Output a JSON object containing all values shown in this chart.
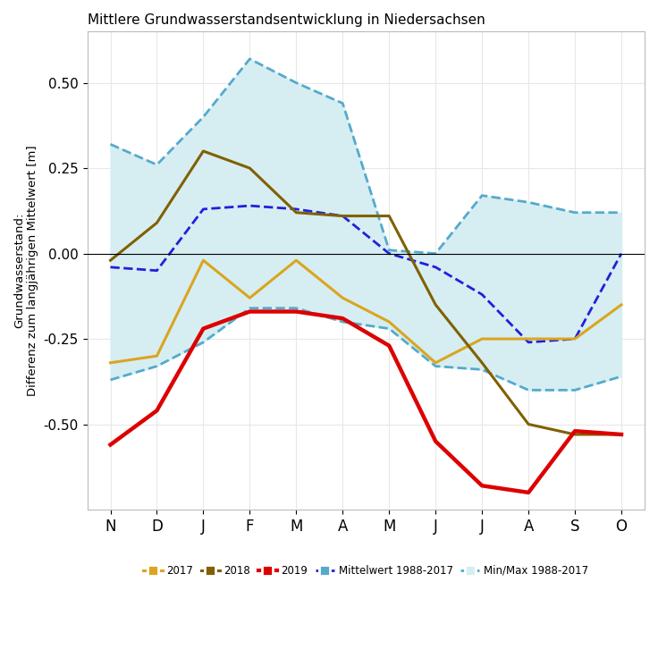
{
  "title": "Mittlere Grundwasserstandsentwicklung in Niedersachsen",
  "ylabel": "Grundwasserstand:\nDifferenz zum langjährigen Mittelwert [m]",
  "x_labels": [
    "N",
    "D",
    "J",
    "F",
    "M",
    "A",
    "M",
    "J",
    "J",
    "A",
    "S",
    "O"
  ],
  "x_indices": [
    0,
    1,
    2,
    3,
    4,
    5,
    6,
    7,
    8,
    9,
    10,
    11
  ],
  "ylim": [
    -0.75,
    0.65
  ],
  "yticks": [
    -0.5,
    -0.25,
    0.0,
    0.25,
    0.5
  ],
  "line_2017": [
    -0.32,
    -0.3,
    -0.02,
    -0.13,
    -0.02,
    -0.13,
    -0.2,
    -0.32,
    -0.25,
    -0.25,
    -0.25,
    -0.15
  ],
  "line_2018": [
    -0.02,
    0.09,
    0.3,
    0.25,
    0.12,
    0.11,
    0.11,
    -0.15,
    -0.32,
    -0.5,
    -0.53,
    -0.53
  ],
  "line_2019": [
    -0.56,
    -0.46,
    -0.22,
    -0.17,
    -0.17,
    -0.19,
    -0.27,
    -0.55,
    -0.68,
    -0.7,
    -0.52,
    -0.53
  ],
  "mittelwert": [
    -0.04,
    -0.05,
    0.13,
    0.14,
    0.13,
    0.11,
    0.0,
    -0.04,
    -0.12,
    -0.26,
    -0.25,
    0.0
  ],
  "min_1988": [
    -0.37,
    -0.33,
    -0.26,
    -0.16,
    -0.16,
    -0.2,
    -0.22,
    -0.33,
    -0.34,
    -0.4,
    -0.4,
    -0.36
  ],
  "max_1988": [
    0.32,
    0.26,
    0.4,
    0.57,
    0.5,
    0.44,
    0.01,
    0.0,
    0.17,
    0.15,
    0.12,
    0.12
  ],
  "color_2017": "#DAA520",
  "color_2018": "#806000",
  "color_2019": "#DD0000",
  "color_mittelwert": "#2020DD",
  "color_fill": "#D6EEF2",
  "color_fill_edge": "#55AACC",
  "bg_plot": "#FFFFFF",
  "bg_fig": "#FFFFFF",
  "grid_color": "#E8E8E8"
}
